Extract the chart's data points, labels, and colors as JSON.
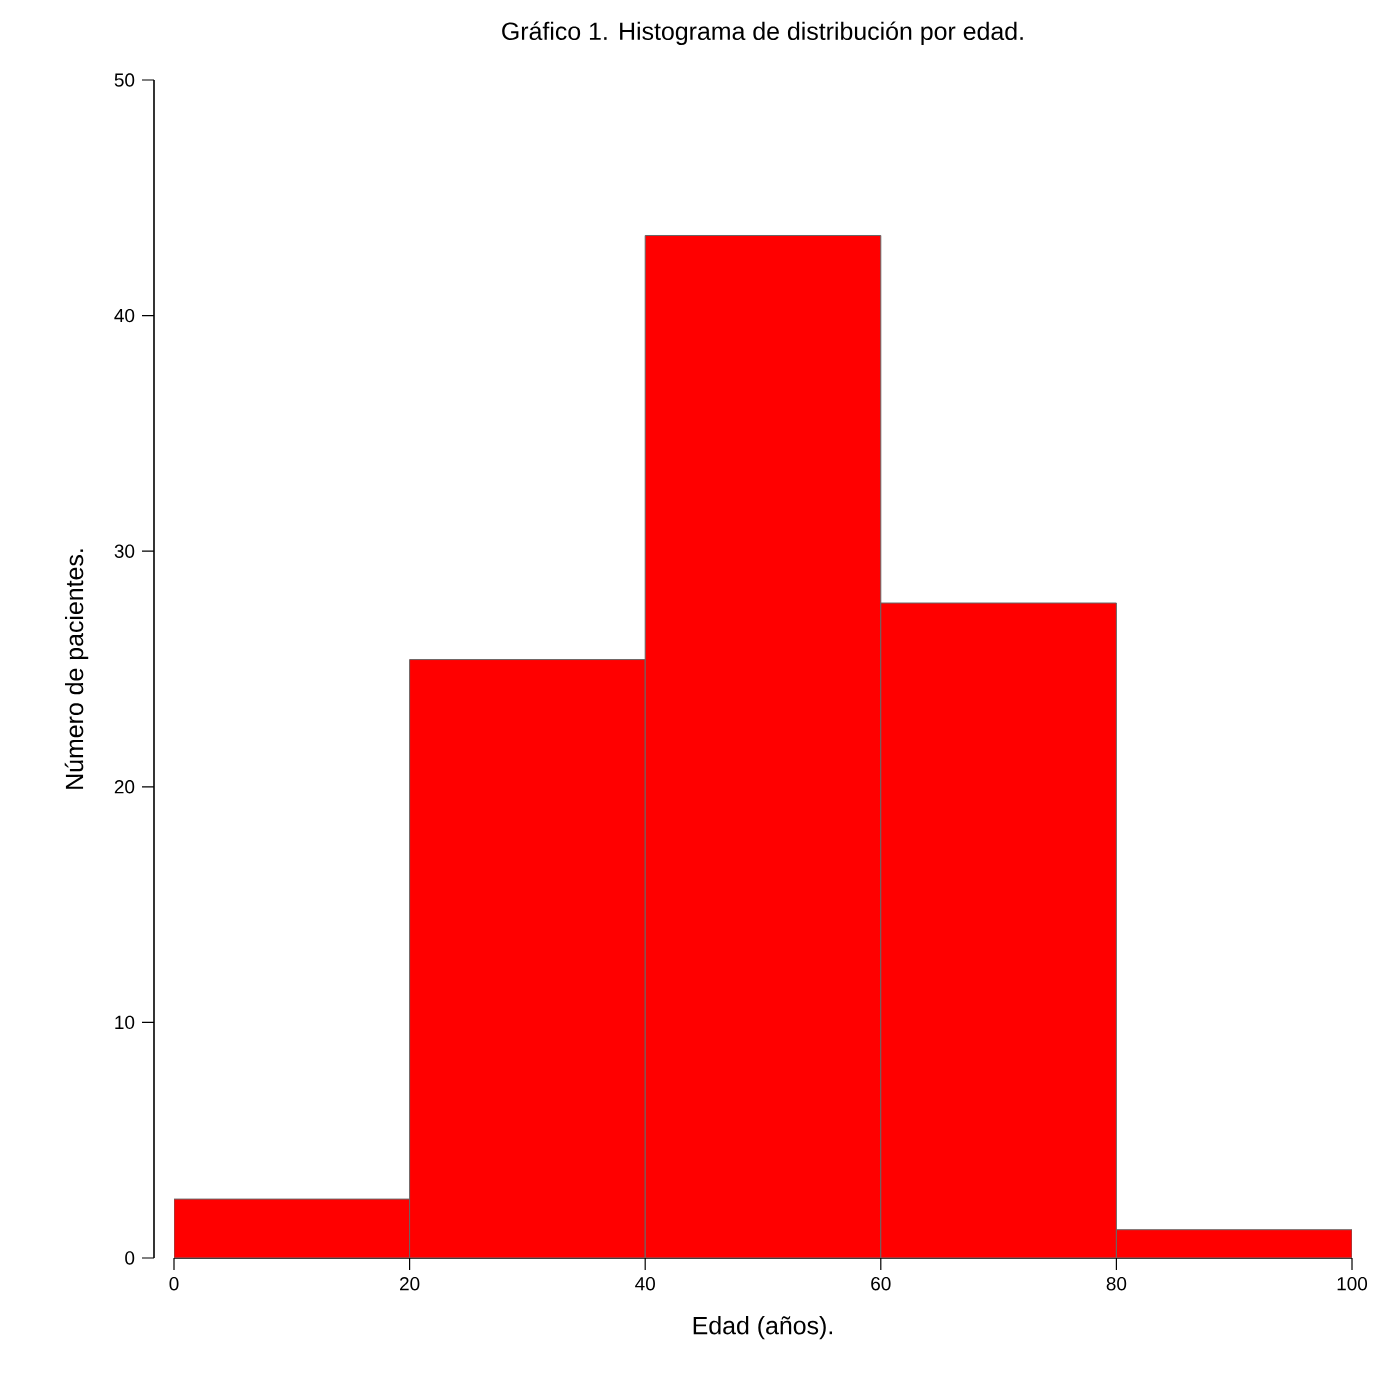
{
  "chart_data": {
    "type": "histogram",
    "title": "Gráfico 1. Histograma de distribución por edad.",
    "xlabel": "Edad (años).",
    "ylabel": "Número de pacientes.",
    "bins": [
      0,
      20,
      40,
      60,
      80,
      100
    ],
    "values": [
      2.5,
      25.4,
      43.4,
      27.8,
      1.2
    ],
    "color": "#ff0000",
    "xlim": [
      0,
      100
    ],
    "xticks": [
      0,
      20,
      40,
      60,
      80,
      100
    ],
    "ylim": [
      0,
      50
    ],
    "yticks": [
      0,
      10,
      20,
      30,
      40,
      50
    ],
    "grid": false
  }
}
